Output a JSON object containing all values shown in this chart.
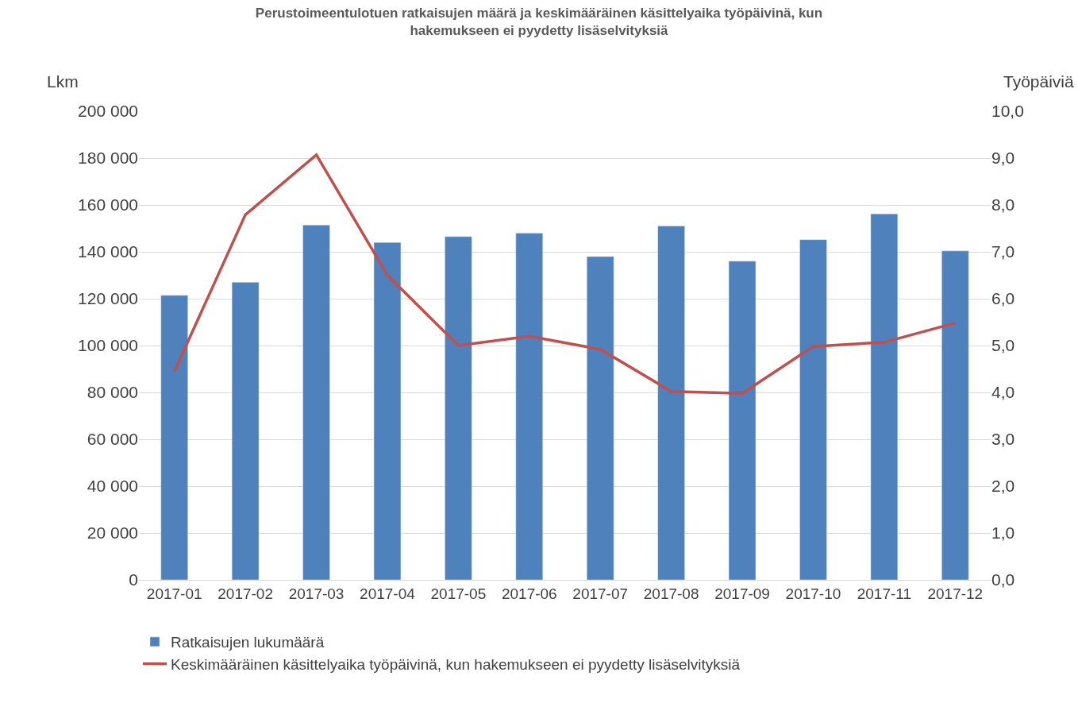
{
  "chart_data": {
    "type": "bar",
    "title": "Perustoimeentulotuen ratkaisujen määrä ja keskimääräinen käsittelyaika työpäivinä, kun hakemukseen ei pyydetty lisäselvityksiä",
    "ylabel": "Lkm",
    "y2label": "Työpäiviä",
    "categories": [
      "2017-01",
      "2017-02",
      "2017-03",
      "2017-04",
      "2017-05",
      "2017-06",
      "2017-07",
      "2017-08",
      "2017-09",
      "2017-10",
      "2017-11",
      "2017-12"
    ],
    "series": [
      {
        "name": "Ratkaisujen lukumäärä",
        "color": "#4f81bd",
        "values": [
          121400,
          127000,
          151400,
          144000,
          146500,
          148000,
          138000,
          151000,
          136000,
          145200,
          156200,
          140400
        ]
      },
      {
        "name": "Keskimääräinen käsittelyaika työpäivinä, kun hakemukseen ei pyydetty lisäselvityksiä",
        "type": "line",
        "axis": "y2",
        "color": "#c0504d",
        "values": [
          4.45,
          7.79,
          9.07,
          6.5,
          5.0,
          5.2,
          4.92,
          4.02,
          3.98,
          4.98,
          5.07,
          5.48
        ]
      }
    ],
    "ylim": [
      0,
      200000
    ],
    "yticks": [
      {
        "value": 0,
        "label": "0"
      },
      {
        "value": 20000,
        "label": "20 000"
      },
      {
        "value": 40000,
        "label": "40 000"
      },
      {
        "value": 60000,
        "label": "60 000"
      },
      {
        "value": 80000,
        "label": "80 000"
      },
      {
        "value": 100000,
        "label": "100 000"
      },
      {
        "value": 120000,
        "label": "120 000"
      },
      {
        "value": 140000,
        "label": "140 000"
      },
      {
        "value": 160000,
        "label": "160 000"
      },
      {
        "value": 180000,
        "label": "180 000"
      },
      {
        "value": 200000,
        "label": "200 000"
      }
    ],
    "y2lim": [
      0,
      10
    ],
    "y2ticks": [
      {
        "value": 0,
        "label": "0,0"
      },
      {
        "value": 1,
        "label": "1,0"
      },
      {
        "value": 2,
        "label": "2,0"
      },
      {
        "value": 3,
        "label": "3,0"
      },
      {
        "value": 4,
        "label": "4,0"
      },
      {
        "value": 5,
        "label": "5,0"
      },
      {
        "value": 6,
        "label": "6,0"
      },
      {
        "value": 7,
        "label": "7,0"
      },
      {
        "value": 8,
        "label": "8,0"
      },
      {
        "value": 9,
        "label": "9,0"
      },
      {
        "value": 10,
        "label": "10,0"
      }
    ],
    "grid": "y",
    "legend": "bottom left",
    "marker": "none",
    "line_style": "solid"
  }
}
